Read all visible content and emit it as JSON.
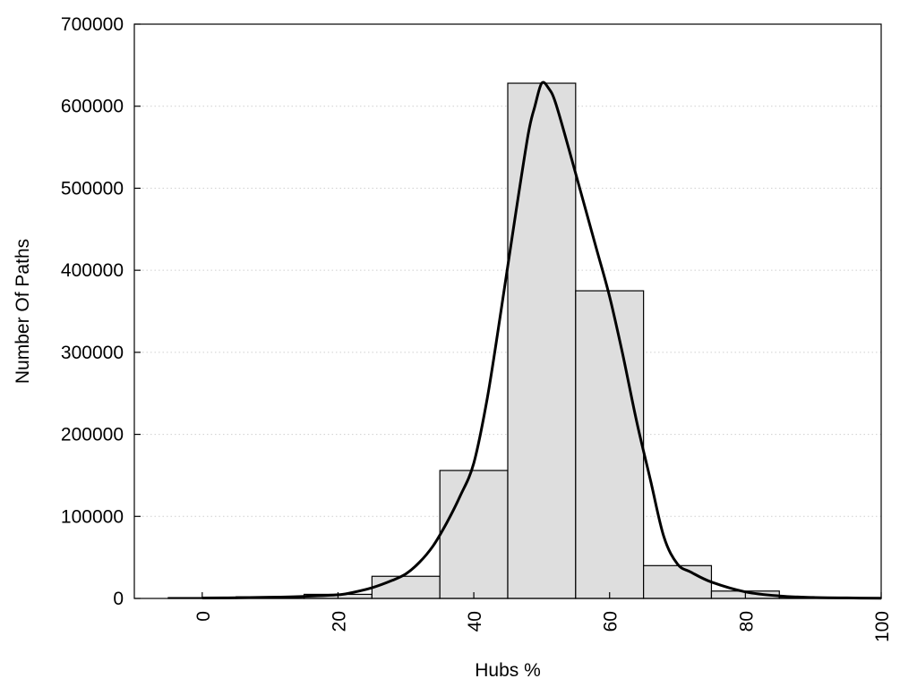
{
  "chart_data": {
    "type": "bar",
    "title": "",
    "xlabel": "Hubs %",
    "ylabel": "Number Of Paths",
    "xlim": [
      -10,
      100
    ],
    "ylim": [
      0,
      700000
    ],
    "x_ticks": [
      "0",
      "20",
      "40",
      "60",
      "80",
      "100"
    ],
    "y_ticks": [
      "0",
      "100000",
      "200000",
      "300000",
      "400000",
      "500000",
      "600000",
      "700000"
    ],
    "grid": "horizontal dotted",
    "legend": "none",
    "bin_width": 10,
    "bars": {
      "centers": [
        0,
        10,
        20,
        30,
        40,
        50,
        60,
        70,
        80,
        90,
        100
      ],
      "values": [
        1000,
        2000,
        5000,
        27000,
        156000,
        628000,
        375000,
        40000,
        9000,
        1500,
        500
      ]
    },
    "curve": {
      "x": [
        0,
        5,
        10,
        15,
        20,
        22,
        25,
        28,
        30,
        32,
        34,
        36,
        38,
        40,
        42,
        44,
        46,
        48,
        49,
        50,
        51,
        52,
        54,
        56,
        58,
        60,
        62,
        64,
        66,
        68,
        70,
        72,
        75,
        80,
        85,
        90,
        95,
        100
      ],
      "y": [
        500,
        800,
        1500,
        2500,
        4500,
        7000,
        13000,
        22000,
        30000,
        44000,
        64000,
        92000,
        125000,
        165000,
        245000,
        350000,
        460000,
        565000,
        600000,
        628000,
        622000,
        605000,
        548000,
        488000,
        428000,
        368000,
        295000,
        215000,
        145000,
        75000,
        42000,
        32000,
        20000,
        8000,
        3000,
        1200,
        600,
        300
      ]
    },
    "colors": {
      "bar_fill": "#dedede",
      "bar_stroke": "#000000",
      "curve": "#000000"
    }
  }
}
